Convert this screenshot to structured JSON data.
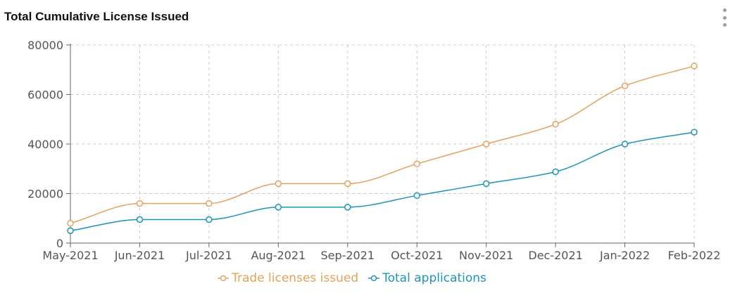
{
  "card": {
    "title": "Total Cumulative License Issued",
    "menu_icon": "kebab-menu-icon"
  },
  "chart_data": {
    "type": "line",
    "title": "Total Cumulative License Issued",
    "xlabel": "",
    "ylabel": "",
    "categories": [
      "May-2021",
      "Jun-2021",
      "Jul-2021",
      "Aug-2021",
      "Sep-2021",
      "Oct-2021",
      "Nov-2021",
      "Dec-2021",
      "Jan-2022",
      "Feb-2022"
    ],
    "ylim": [
      0,
      80000
    ],
    "yticks": [
      0,
      20000,
      40000,
      60000,
      80000
    ],
    "grid": true,
    "legend_position": "bottom-center",
    "series": [
      {
        "name": "Trade licenses issued",
        "color": "#e3a25c",
        "values": [
          8000,
          16000,
          16000,
          24000,
          24000,
          32000,
          40000,
          48000,
          63500,
          71500
        ]
      },
      {
        "name": "Total applications",
        "color": "#1e93b8",
        "values": [
          5000,
          9500,
          9500,
          14500,
          14500,
          19200,
          24000,
          28800,
          40000,
          44800
        ]
      }
    ]
  }
}
